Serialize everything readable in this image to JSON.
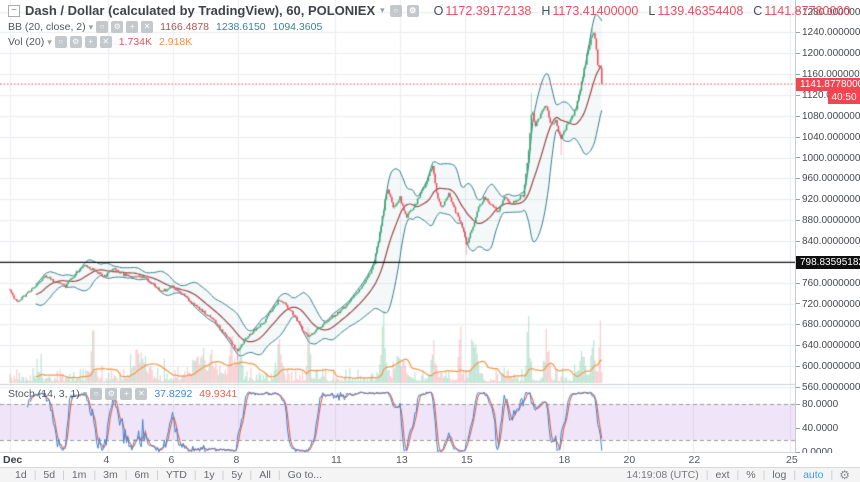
{
  "header": {
    "title": "Dash / Dollar (calculated by TradingView), 60, POLONIEX",
    "ohlc": [
      {
        "label": "O",
        "value": "1172.39172138"
      },
      {
        "label": "H",
        "value": "1173.41400000"
      },
      {
        "label": "L",
        "value": "1139.46354408"
      },
      {
        "label": "C",
        "value": "1141.87780000"
      }
    ]
  },
  "icons": {
    "collapse": "−",
    "dropdown": "▾",
    "visibility": "○",
    "settings": "⚙",
    "add": "+",
    "close": "✕",
    "gear": "⚙"
  },
  "legend": {
    "bb": {
      "label": "BB (20, close, 2)",
      "values": [
        {
          "text": "1166.4878",
          "color": "#a85454"
        },
        {
          "text": "1238.6150",
          "color": "#3f8294"
        },
        {
          "text": "1094.3605",
          "color": "#3f8294"
        }
      ]
    },
    "vol": {
      "label": "Vol (20)",
      "values": [
        {
          "text": "1.734K",
          "color": "#e9505e"
        },
        {
          "text": "2.918K",
          "color": "#f09048"
        }
      ]
    },
    "stoch": {
      "label": "Stoch (14, 3, 1)",
      "values": [
        {
          "text": "37.8292",
          "color": "#4286d5"
        },
        {
          "text": "49.9341",
          "color": "#e2674e"
        }
      ]
    }
  },
  "price_axis": {
    "ticks": [
      "1280.00000000",
      "1240.00000000",
      "1200.00000000",
      "1160.00000000",
      "1120.00000000",
      "1080.00000000",
      "1040.00000000",
      "1000.00000000",
      "960.00000000",
      "920.00000000",
      "880.00000000",
      "840.00000000",
      "760.00000000",
      "720.00000000",
      "680.00000000",
      "640.00000000",
      "600.00000000",
      "560.00000000"
    ],
    "current_price_label": "1141.87780000",
    "countdown": "40:50",
    "last_price_label": "798.83595182"
  },
  "stoch_axis": {
    "ticks": [
      "80.0000",
      "40.0000",
      "0.0000"
    ]
  },
  "time_axis": {
    "ticks": [
      {
        "label": "Dec",
        "day": 1
      },
      {
        "label": "4",
        "day": 4
      },
      {
        "label": "6",
        "day": 6
      },
      {
        "label": "8",
        "day": 8
      },
      {
        "label": "11",
        "day": 11
      },
      {
        "label": "13",
        "day": 13
      },
      {
        "label": "15",
        "day": 15
      },
      {
        "label": "18",
        "day": 18
      },
      {
        "label": "20",
        "day": 20
      },
      {
        "label": "22",
        "day": 22
      },
      {
        "label": "25",
        "day": 25
      }
    ]
  },
  "footer": {
    "ranges": [
      "1d",
      "5d",
      "1m",
      "3m",
      "6m",
      "YTD",
      "1y",
      "5y",
      "All"
    ],
    "goto_label": "Go to...",
    "clock": "14:19:08 (UTC)",
    "right_items": [
      "ext",
      "%",
      "log",
      "auto"
    ]
  },
  "chart_data": {
    "type": "candlestick",
    "symbol": "Dash / Dollar (calculated by TradingView)",
    "interval": "60",
    "exchange": "POLONIEX",
    "month": "Dec",
    "ylim": [
      560,
      1280
    ],
    "xlim_days": [
      1,
      25.8
    ],
    "series_end_day": 19.21,
    "last_candle": {
      "open": 1172.39172138,
      "high": 1173.414,
      "low": 1139.46354408,
      "close": 1141.8778
    },
    "last_price": 1141.8778,
    "prev_close_line": 798.83595182,
    "indicators": {
      "bollinger": {
        "length": 20,
        "source": "close",
        "stdev": 2,
        "basis": 1166.4878,
        "upper": 1238.615,
        "lower": 1094.3605
      },
      "volume_ma": {
        "length": 20,
        "current": "1.734K",
        "ma": "2.918K"
      },
      "stochastic": {
        "k": 14,
        "d": 3,
        "smooth": 1,
        "k_value": 37.8292,
        "d_value": 49.9341,
        "upper_band": 80,
        "lower_band": 20
      }
    },
    "price_keyframes": [
      [
        1.0,
        745
      ],
      [
        1.2,
        722
      ],
      [
        1.5,
        738
      ],
      [
        1.8,
        756
      ],
      [
        2.1,
        772
      ],
      [
        2.4,
        762
      ],
      [
        2.7,
        753
      ],
      [
        3.0,
        776
      ],
      [
        3.3,
        794
      ],
      [
        3.6,
        783
      ],
      [
        3.9,
        771
      ],
      [
        4.2,
        788
      ],
      [
        4.5,
        776
      ],
      [
        4.8,
        769
      ],
      [
        5.1,
        773
      ],
      [
        5.4,
        756
      ],
      [
        5.7,
        743
      ],
      [
        6.0,
        753
      ],
      [
        6.3,
        739
      ],
      [
        6.6,
        721
      ],
      [
        6.9,
        706
      ],
      [
        7.2,
        693
      ],
      [
        7.5,
        669
      ],
      [
        7.8,
        646
      ],
      [
        8.0,
        627
      ],
      [
        8.2,
        649
      ],
      [
        8.5,
        669
      ],
      [
        8.8,
        683
      ],
      [
        9.0,
        703
      ],
      [
        9.3,
        729
      ],
      [
        9.5,
        716
      ],
      [
        9.8,
        693
      ],
      [
        10.0,
        669
      ],
      [
        10.2,
        656
      ],
      [
        10.5,
        673
      ],
      [
        10.8,
        689
      ],
      [
        11.1,
        703
      ],
      [
        11.4,
        719
      ],
      [
        11.7,
        743
      ],
      [
        12.0,
        769
      ],
      [
        12.2,
        796
      ],
      [
        12.4,
        863
      ],
      [
        12.6,
        941
      ],
      [
        12.8,
        906
      ],
      [
        13.0,
        923
      ],
      [
        13.2,
        886
      ],
      [
        13.5,
        913
      ],
      [
        13.8,
        953
      ],
      [
        14.0,
        983
      ],
      [
        14.15,
        923
      ],
      [
        14.3,
        903
      ],
      [
        14.5,
        929
      ],
      [
        14.7,
        899
      ],
      [
        14.9,
        869
      ],
      [
        15.05,
        833
      ],
      [
        15.2,
        859
      ],
      [
        15.4,
        903
      ],
      [
        15.6,
        923
      ],
      [
        15.8,
        909
      ],
      [
        16.0,
        896
      ],
      [
        16.2,
        923
      ],
      [
        16.4,
        913
      ],
      [
        16.6,
        919
      ],
      [
        16.8,
        929
      ],
      [
        16.95,
        1006
      ],
      [
        17.05,
        1093
      ],
      [
        17.15,
        1059
      ],
      [
        17.3,
        1079
      ],
      [
        17.5,
        1099
      ],
      [
        17.65,
        1063
      ],
      [
        17.8,
        1073
      ],
      [
        17.95,
        1033
      ],
      [
        18.1,
        1059
      ],
      [
        18.25,
        1076
      ],
      [
        18.4,
        1092
      ],
      [
        18.5,
        1121
      ],
      [
        18.6,
        1146
      ],
      [
        18.7,
        1179
      ],
      [
        18.8,
        1209
      ],
      [
        18.9,
        1233
      ],
      [
        18.97,
        1238
      ],
      [
        19.05,
        1206
      ],
      [
        19.1,
        1164
      ],
      [
        19.15,
        1186
      ],
      [
        19.21,
        1141.88
      ]
    ],
    "wick_events": [
      {
        "day": 8.0,
        "price": 612,
        "side": "low"
      },
      {
        "day": 14.0,
        "price": 993,
        "side": "high"
      },
      {
        "day": 15.05,
        "price": 813,
        "side": "low"
      },
      {
        "day": 17.05,
        "price": 1124,
        "side": "high"
      },
      {
        "day": 17.95,
        "price": 1005,
        "side": "low"
      },
      {
        "day": 18.92,
        "price": 1248,
        "side": "high"
      }
    ],
    "volume_spikes": [
      {
        "day": 3.55,
        "v": 11500,
        "w": 0.06
      },
      {
        "day": 5.0,
        "v": 3200,
        "w": 0.3
      },
      {
        "day": 7.0,
        "v": 3000,
        "w": 0.5
      },
      {
        "day": 7.8,
        "v": 6500,
        "w": 0.08
      },
      {
        "day": 8.05,
        "v": 5200,
        "w": 0.1
      },
      {
        "day": 9.3,
        "v": 4200,
        "w": 0.12
      },
      {
        "day": 10.2,
        "v": 9000,
        "w": 0.05
      },
      {
        "day": 12.5,
        "v": 6800,
        "w": 0.12
      },
      {
        "day": 13.0,
        "v": 4200,
        "w": 0.2
      },
      {
        "day": 14.0,
        "v": 5200,
        "w": 0.08
      },
      {
        "day": 14.85,
        "v": 9800,
        "w": 0.05
      },
      {
        "day": 15.3,
        "v": 3800,
        "w": 0.15
      },
      {
        "day": 16.95,
        "v": 8200,
        "w": 0.07
      },
      {
        "day": 17.5,
        "v": 5200,
        "w": 0.1
      },
      {
        "day": 18.6,
        "v": 4200,
        "w": 0.15
      },
      {
        "day": 18.95,
        "v": 6200,
        "w": 0.08
      },
      {
        "day": 19.15,
        "v": 9500,
        "w": 0.04
      }
    ],
    "colors": {
      "up": "#3fa572",
      "down": "#e9505e",
      "up_wick": "rgba(101,189,146,0.55)",
      "down_wick": "rgba(240,135,143,0.6)",
      "bb_line": "#35818e",
      "bb_fill": "rgba(53,129,142,0.055)",
      "bb_basis": "#9a4a4a",
      "vol_up": "rgba(101,189,146,0.38)",
      "vol_down": "rgba(240,135,143,0.38)",
      "vol_ma": "#f2994a",
      "stoch_k": "#4286d5",
      "stoch_d": "#e2674e",
      "stoch_fill": "rgba(153,80,209,0.15)",
      "stoch_dash": "#9b9b9b",
      "grid": "#eaeef2",
      "last_price_line": "#151515",
      "current_price_line": "#f5484d",
      "current_label_bg": "#ef4652",
      "last_label_bg": "#0f0f0f",
      "accent_blue": "#35a6dc"
    }
  }
}
